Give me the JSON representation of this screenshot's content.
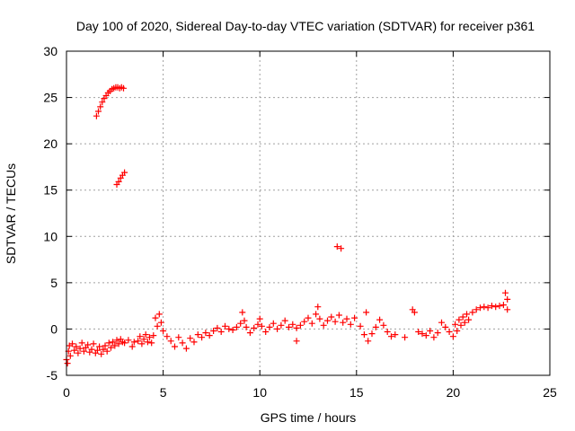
{
  "chart_data": {
    "type": "scatter",
    "title": "Day 100 of 2020, Sidereal Day-to-day VTEC variation (SDTVAR) for receiver p361",
    "xlabel": "GPS time / hours",
    "ylabel": "SDTVAR / TECUs",
    "xlim": [
      0,
      25
    ],
    "ylim": [
      -5,
      30
    ],
    "xticks": [
      0,
      5,
      10,
      15,
      20,
      25
    ],
    "xtick_labels": [
      "0",
      "5",
      "10",
      "15",
      "20",
      "25"
    ],
    "yticks": [
      -5,
      0,
      5,
      10,
      15,
      20,
      25,
      30
    ],
    "ytick_labels": [
      "-5",
      "0",
      "5",
      "10",
      "15",
      "20",
      "25",
      "30"
    ],
    "grid": true,
    "marker": "plus",
    "color": "#ff0000",
    "series": [
      {
        "name": "SDTVAR",
        "points": [
          [
            0.0,
            -3.3
          ],
          [
            0.05,
            -3.7
          ],
          [
            0.1,
            -2.4
          ],
          [
            0.15,
            -1.8
          ],
          [
            0.2,
            -2.9
          ],
          [
            0.3,
            -1.6
          ],
          [
            0.4,
            -2.3
          ],
          [
            0.5,
            -1.9
          ],
          [
            0.6,
            -2.6
          ],
          [
            0.7,
            -2.1
          ],
          [
            0.8,
            -1.5
          ],
          [
            0.9,
            -2.4
          ],
          [
            1.0,
            -2.0
          ],
          [
            1.1,
            -1.7
          ],
          [
            1.2,
            -2.5
          ],
          [
            1.3,
            -2.2
          ],
          [
            1.4,
            -1.6
          ],
          [
            1.5,
            -2.6
          ],
          [
            1.6,
            -2.3
          ],
          [
            1.7,
            -1.9
          ],
          [
            1.8,
            -2.7
          ],
          [
            1.9,
            -2.2
          ],
          [
            2.0,
            -1.8
          ],
          [
            2.1,
            -2.4
          ],
          [
            2.2,
            -1.5
          ],
          [
            2.3,
            -2.0
          ],
          [
            2.4,
            -1.4
          ],
          [
            2.5,
            -1.8
          ],
          [
            2.6,
            -1.2
          ],
          [
            2.7,
            -1.6
          ],
          [
            2.8,
            -1.1
          ],
          [
            2.9,
            -1.4
          ],
          [
            3.0,
            -1.5
          ],
          [
            3.2,
            -1.2
          ],
          [
            3.4,
            -1.9
          ],
          [
            3.5,
            -1.4
          ],
          [
            1.55,
            23.0
          ],
          [
            1.65,
            23.5
          ],
          [
            1.75,
            24.0
          ],
          [
            1.85,
            24.5
          ],
          [
            1.95,
            24.9
          ],
          [
            2.05,
            25.2
          ],
          [
            2.15,
            25.5
          ],
          [
            2.25,
            25.7
          ],
          [
            2.35,
            25.9
          ],
          [
            2.45,
            26.0
          ],
          [
            2.55,
            26.1
          ],
          [
            2.65,
            26.1
          ],
          [
            2.75,
            26.0
          ],
          [
            2.85,
            26.1
          ],
          [
            2.95,
            26.0
          ],
          [
            2.6,
            15.6
          ],
          [
            2.7,
            15.9
          ],
          [
            2.8,
            16.3
          ],
          [
            2.9,
            16.6
          ],
          [
            3.0,
            16.9
          ],
          [
            3.7,
            -1.3
          ],
          [
            3.8,
            -0.8
          ],
          [
            3.9,
            -1.6
          ],
          [
            4.0,
            -1.1
          ],
          [
            4.1,
            -0.6
          ],
          [
            4.2,
            -1.4
          ],
          [
            4.3,
            -0.9
          ],
          [
            4.4,
            -1.5
          ],
          [
            4.5,
            -0.7
          ],
          [
            4.6,
            1.2
          ],
          [
            4.7,
            0.3
          ],
          [
            4.8,
            1.6
          ],
          [
            4.9,
            0.7
          ],
          [
            5.0,
            -0.2
          ],
          [
            5.2,
            -0.8
          ],
          [
            5.4,
            -1.3
          ],
          [
            5.6,
            -1.9
          ],
          [
            5.8,
            -0.9
          ],
          [
            6.0,
            -1.5
          ],
          [
            6.2,
            -2.1
          ],
          [
            6.4,
            -1.0
          ],
          [
            6.6,
            -1.4
          ],
          [
            6.8,
            -0.6
          ],
          [
            7.0,
            -0.9
          ],
          [
            7.2,
            -0.4
          ],
          [
            7.4,
            -0.7
          ],
          [
            7.6,
            -0.2
          ],
          [
            7.8,
            0.1
          ],
          [
            8.0,
            -0.3
          ],
          [
            8.2,
            0.3
          ],
          [
            8.4,
            0.0
          ],
          [
            8.6,
            -0.1
          ],
          [
            8.8,
            0.2
          ],
          [
            9.0,
            0.6
          ],
          [
            9.1,
            1.8
          ],
          [
            9.2,
            0.9
          ],
          [
            9.3,
            0.2
          ],
          [
            9.5,
            -0.4
          ],
          [
            9.7,
            0.1
          ],
          [
            9.9,
            0.5
          ],
          [
            10.0,
            1.1
          ],
          [
            10.1,
            0.3
          ],
          [
            10.3,
            -0.3
          ],
          [
            10.5,
            0.2
          ],
          [
            10.7,
            0.6
          ],
          [
            10.9,
            0.0
          ],
          [
            11.1,
            0.4
          ],
          [
            11.3,
            0.9
          ],
          [
            11.5,
            0.2
          ],
          [
            11.7,
            0.5
          ],
          [
            11.9,
            0.1
          ],
          [
            12.1,
            0.4
          ],
          [
            12.3,
            0.8
          ],
          [
            12.5,
            1.2
          ],
          [
            12.7,
            0.6
          ],
          [
            12.9,
            1.6
          ],
          [
            13.0,
            2.4
          ],
          [
            13.1,
            1.1
          ],
          [
            13.3,
            0.4
          ],
          [
            13.5,
            0.9
          ],
          [
            13.7,
            1.3
          ],
          [
            13.9,
            0.8
          ],
          [
            14.1,
            1.5
          ],
          [
            14.3,
            0.7
          ],
          [
            14.5,
            1.1
          ],
          [
            14.7,
            0.5
          ],
          [
            14.9,
            1.2
          ],
          [
            15.2,
            0.3
          ],
          [
            15.4,
            -0.6
          ],
          [
            15.6,
            -1.3
          ],
          [
            15.8,
            -0.5
          ],
          [
            16.0,
            0.2
          ],
          [
            16.2,
            1.0
          ],
          [
            16.4,
            0.4
          ],
          [
            16.6,
            -0.3
          ],
          [
            16.8,
            -0.8
          ],
          [
            17.0,
            -0.6
          ],
          [
            17.5,
            -0.9
          ],
          [
            17.9,
            2.1
          ],
          [
            18.0,
            1.8
          ],
          [
            18.2,
            -0.3
          ],
          [
            18.4,
            -0.5
          ],
          [
            18.6,
            -0.7
          ],
          [
            18.8,
            -0.2
          ],
          [
            19.0,
            -0.9
          ],
          [
            19.2,
            -0.4
          ],
          [
            19.4,
            0.7
          ],
          [
            19.6,
            0.2
          ],
          [
            19.8,
            -0.3
          ],
          [
            20.0,
            -0.8
          ],
          [
            20.1,
            0.5
          ],
          [
            20.2,
            -0.2
          ],
          [
            20.3,
            1.0
          ],
          [
            20.4,
            0.4
          ],
          [
            20.5,
            1.3
          ],
          [
            20.6,
            0.7
          ],
          [
            20.7,
            1.6
          ],
          [
            20.8,
            1.0
          ],
          [
            21.0,
            1.8
          ],
          [
            21.2,
            2.1
          ],
          [
            21.4,
            2.3
          ],
          [
            21.6,
            2.4
          ],
          [
            21.8,
            2.3
          ],
          [
            22.0,
            2.5
          ],
          [
            22.2,
            2.4
          ],
          [
            22.4,
            2.5
          ],
          [
            22.6,
            2.6
          ],
          [
            22.7,
            3.9
          ],
          [
            22.8,
            2.1
          ],
          [
            22.8,
            3.2
          ],
          [
            14.0,
            8.9
          ],
          [
            14.2,
            8.7
          ],
          [
            11.9,
            -1.3
          ],
          [
            15.5,
            1.8
          ]
        ]
      }
    ]
  }
}
